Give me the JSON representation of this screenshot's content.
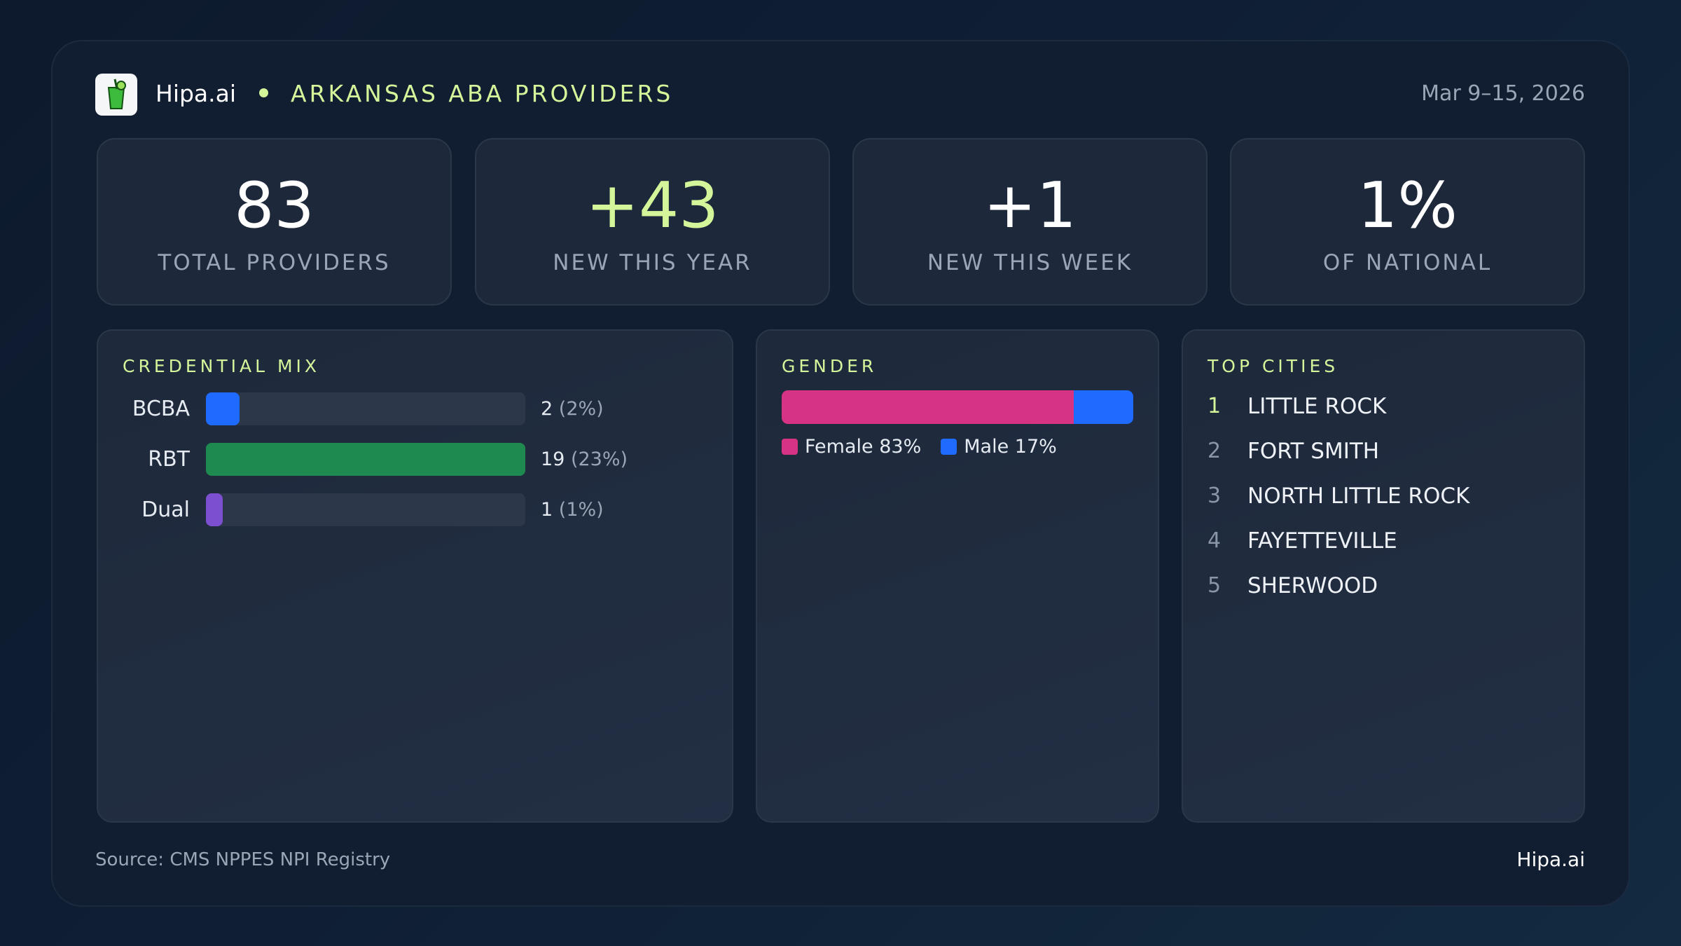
{
  "header": {
    "brand": "Hipa.ai",
    "title": "ARKANSAS ABA PROVIDERS",
    "date": "Mar 9–15, 2026"
  },
  "stats": [
    {
      "value": "83",
      "label": "TOTAL PROVIDERS",
      "color": "#ffffff"
    },
    {
      "value": "+43",
      "label": "NEW THIS YEAR",
      "color": "#d4f59a"
    },
    {
      "value": "+1",
      "label": "NEW THIS WEEK",
      "color": "#ffffff"
    },
    {
      "value": "1%",
      "label": "OF NATIONAL",
      "color": "#ffffff"
    }
  ],
  "credential_mix": {
    "title": "CREDENTIAL MIX",
    "categories": [
      "BCBA",
      "RBT",
      "Dual"
    ],
    "values": [
      2,
      19,
      1
    ],
    "percents": [
      2,
      23,
      1
    ],
    "percent_labels": [
      "(2%)",
      "(23%)",
      "(1%)"
    ],
    "colors": [
      "#1f6bff",
      "#1e8a50",
      "#7b4fd0"
    ]
  },
  "gender": {
    "title": "GENDER",
    "series": [
      {
        "name": "Female",
        "color": "#d63384",
        "value": 83,
        "value_label": "83%"
      },
      {
        "name": "Male",
        "color": "#1f6bff",
        "value": 17,
        "value_label": "17%"
      }
    ]
  },
  "top_cities": {
    "title": "TOP CITIES",
    "ranks": [
      "1",
      "2",
      "3",
      "4",
      "5"
    ],
    "names": [
      "LITTLE ROCK",
      "FORT SMITH",
      "NORTH LITTLE ROCK",
      "FAYETTEVILLE",
      "SHERWOOD"
    ]
  },
  "footer": {
    "source": "Source: CMS NPPES NPI Registry",
    "brand": "Hipa.ai"
  }
}
